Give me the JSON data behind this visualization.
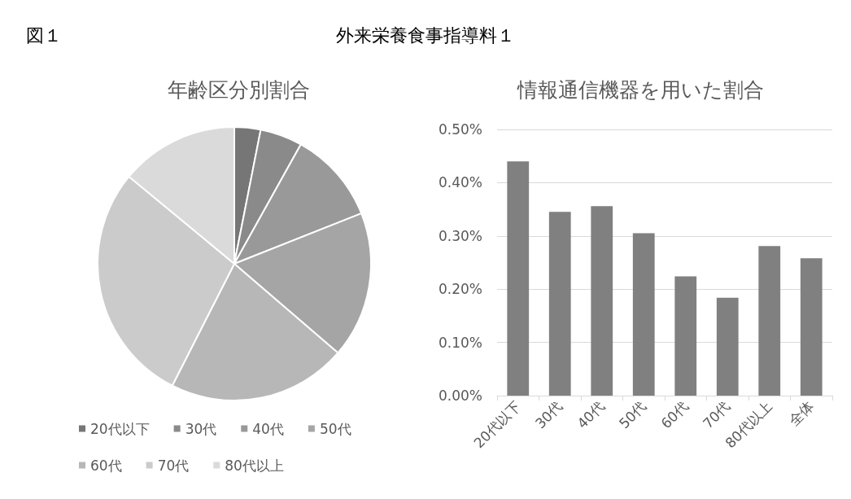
{
  "chart_data": [
    {
      "type": "pie",
      "title": "年齢区分別割合",
      "annotations": [
        "図１",
        "外来栄養食事指導料１"
      ],
      "categories": [
        "20代以下",
        "30代",
        "40代",
        "50代",
        "60代",
        "70代",
        "80代以上"
      ],
      "values": [
        3.1,
        5.0,
        10.9,
        17.3,
        21.2,
        28.5,
        14.0
      ],
      "colors": [
        "#767676",
        "#8a8a8a",
        "#999999",
        "#a5a5a5",
        "#b7b7b7",
        "#cbcbcb",
        "#dadada"
      ],
      "legend": "bottom"
    },
    {
      "type": "bar",
      "title": "情報通信機器を用いた割合",
      "categories": [
        "20代以下",
        "30代",
        "40代",
        "50代",
        "60代",
        "70代",
        "80代以上",
        "全体"
      ],
      "values": [
        0.44,
        0.345,
        0.356,
        0.305,
        0.224,
        0.184,
        0.281,
        0.258
      ],
      "color": "#808080",
      "ylim": [
        0,
        0.5
      ],
      "yticks": [
        {
          "value": 0,
          "label": "0.00%"
        },
        {
          "value": 0.1,
          "label": "0.10%"
        },
        {
          "value": 0.2,
          "label": "0.20%"
        },
        {
          "value": 0.3,
          "label": "0.30%"
        },
        {
          "value": 0.4,
          "label": "0.40%"
        },
        {
          "value": 0.5,
          "label": "0.50%"
        }
      ],
      "grid": "y"
    }
  ]
}
